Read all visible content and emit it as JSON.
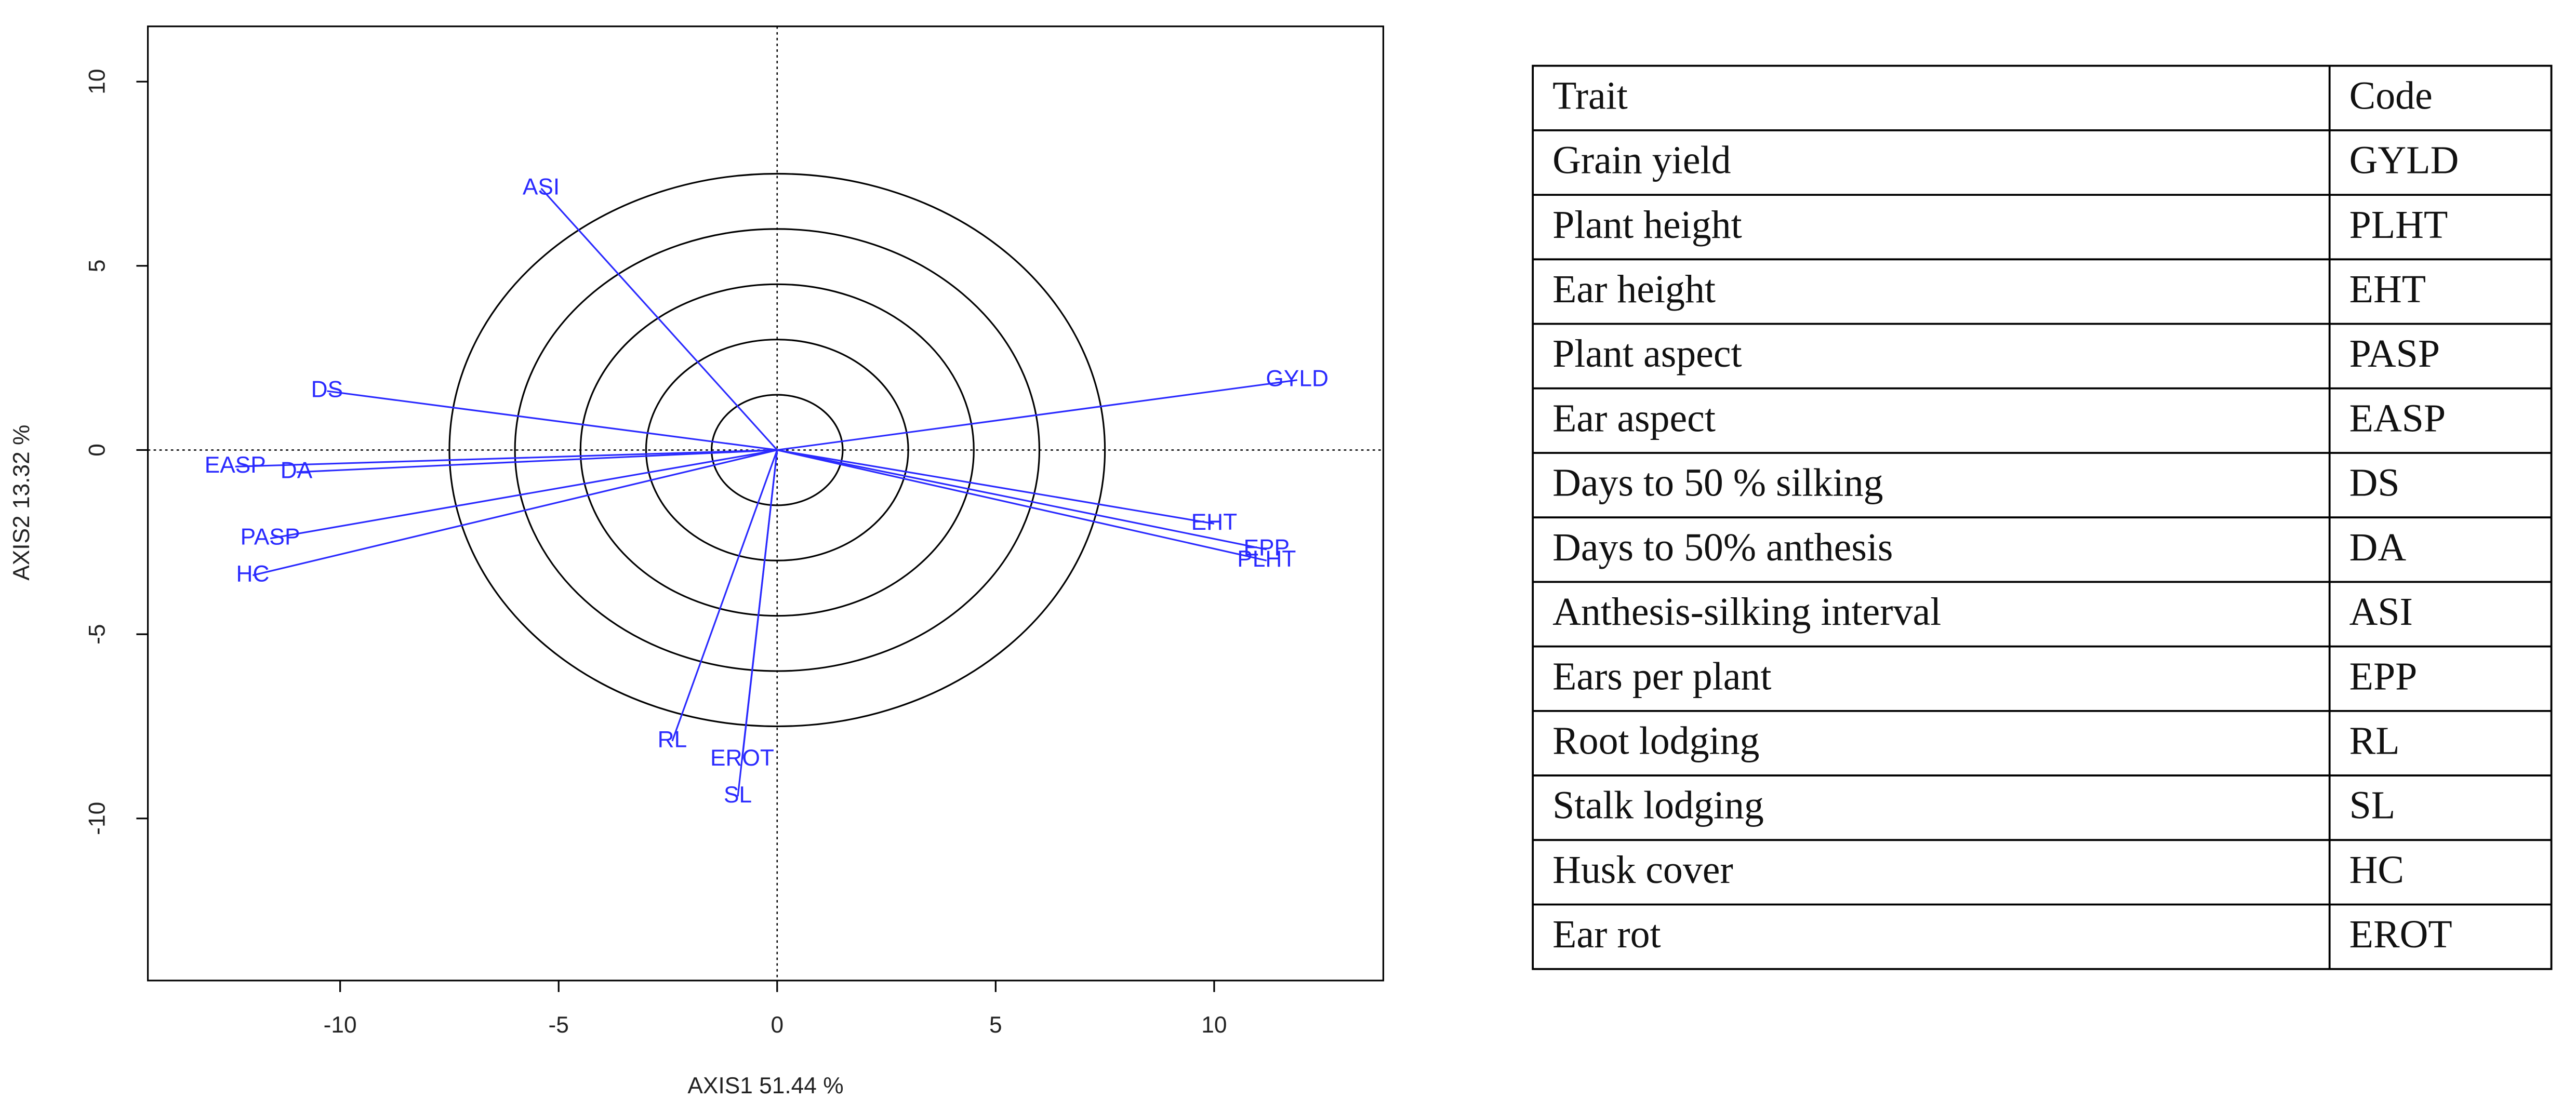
{
  "chart_data": {
    "type": "biplot",
    "x_label": "AXIS1 51.44 %",
    "y_label": "AXIS2 13.32 %",
    "xlim": [
      -14.4,
      13.87
    ],
    "ylim": [
      -14.4,
      11.5
    ],
    "xticks": [
      -10,
      -5,
      0,
      5,
      10
    ],
    "yticks": [
      -10,
      -5,
      0,
      5,
      10
    ],
    "color": "#2a2aff",
    "circles": [
      1.5,
      3,
      4.5,
      6,
      7.5
    ],
    "vectors": [
      {
        "name": "ASI",
        "x": -5.4,
        "y": 7.1
      },
      {
        "name": "GYLD",
        "x": 11.9,
        "y": 1.9
      },
      {
        "name": "DS",
        "x": -10.3,
        "y": 1.6
      },
      {
        "name": "EASP",
        "x": -12.4,
        "y": -0.45
      },
      {
        "name": "DA",
        "x": -11.0,
        "y": -0.6
      },
      {
        "name": "PASP",
        "x": -11.6,
        "y": -2.4
      },
      {
        "name": "HC",
        "x": -12.0,
        "y": -3.4
      },
      {
        "name": "EHT",
        "x": 10.0,
        "y": -2.0
      },
      {
        "name": "EPP",
        "x": 11.2,
        "y": -2.7
      },
      {
        "name": "PLHT",
        "x": 11.2,
        "y": -3.0
      },
      {
        "name": "RL",
        "x": -2.4,
        "y": -7.9
      },
      {
        "name": "EROT",
        "x": -0.8,
        "y": -8.4
      },
      {
        "name": "SL",
        "x": -0.9,
        "y": -9.4
      }
    ]
  },
  "table": {
    "header": [
      "Trait",
      "Code"
    ],
    "rows": [
      [
        "Grain yield",
        "GYLD"
      ],
      [
        "Plant height",
        "PLHT"
      ],
      [
        "Ear height",
        "EHT"
      ],
      [
        "Plant aspect",
        "PASP"
      ],
      [
        "Ear aspect",
        "EASP"
      ],
      [
        "Days to 50 % silking",
        "DS"
      ],
      [
        "Days to 50% anthesis",
        "DA"
      ],
      [
        "Anthesis-silking interval",
        "ASI"
      ],
      [
        "Ears per plant",
        "EPP"
      ],
      [
        "Root lodging",
        "RL"
      ],
      [
        "Stalk lodging",
        "SL"
      ],
      [
        "Husk cover",
        "HC"
      ],
      [
        "Ear rot",
        "EROT"
      ]
    ]
  }
}
